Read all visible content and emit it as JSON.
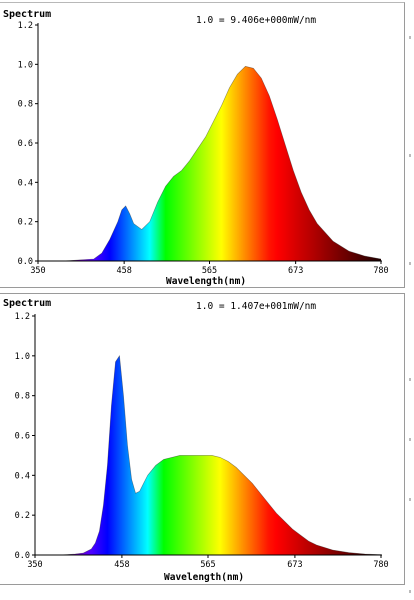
{
  "chart_data": [
    {
      "type": "area",
      "title": "Spectrum",
      "annotation": "1.0 = 9.406e+000mW/nm",
      "xlabel": "Wavelength(nm)",
      "ylabel": "",
      "xlim": [
        350,
        780
      ],
      "ylim": [
        0,
        1.2
      ],
      "x_ticks": [
        350,
        458,
        565,
        673,
        780
      ],
      "y_ticks": [
        0.0,
        0.2,
        0.4,
        0.6,
        0.8,
        1.0,
        1.2
      ],
      "x_tick_labels": [
        "350",
        "458",
        "565",
        "673",
        "780"
      ],
      "y_tick_labels": [
        "0.0",
        "0.2",
        "0.4",
        "0.6",
        "0.8",
        "1.0",
        "1.2"
      ],
      "fill": "wavelength-colored spectrum",
      "series": [
        {
          "x": [
            350,
            380,
            400,
            420,
            430,
            440,
            450,
            455,
            460,
            465,
            470,
            480,
            490,
            500,
            510,
            520,
            530,
            540,
            550,
            560,
            570,
            580,
            590,
            600,
            610,
            620,
            630,
            640,
            650,
            660,
            670,
            680,
            690,
            700,
            720,
            740,
            760,
            780
          ],
          "values": [
            0.0,
            0.0,
            0.005,
            0.01,
            0.04,
            0.11,
            0.2,
            0.26,
            0.28,
            0.24,
            0.19,
            0.16,
            0.2,
            0.3,
            0.38,
            0.43,
            0.46,
            0.51,
            0.57,
            0.63,
            0.71,
            0.79,
            0.88,
            0.95,
            0.99,
            0.98,
            0.93,
            0.84,
            0.72,
            0.59,
            0.46,
            0.35,
            0.26,
            0.19,
            0.1,
            0.05,
            0.025,
            0.01
          ]
        }
      ]
    },
    {
      "type": "area",
      "title": "Spectrum",
      "annotation": "1.0 = 1.407e+001mW/nm",
      "xlabel": "Wavelength(nm)",
      "ylabel": "",
      "xlim": [
        350,
        780
      ],
      "ylim": [
        0,
        1.2
      ],
      "x_ticks": [
        350,
        458,
        565,
        673,
        780
      ],
      "y_ticks": [
        0.0,
        0.2,
        0.4,
        0.6,
        0.8,
        1.0,
        1.2
      ],
      "x_tick_labels": [
        "350",
        "458",
        "565",
        "673",
        "780"
      ],
      "y_tick_labels": [
        "0.0",
        "0.2",
        "0.4",
        "0.6",
        "0.8",
        "1.0",
        "1.2"
      ],
      "fill": "wavelength-colored spectrum",
      "series": [
        {
          "x": [
            350,
            380,
            400,
            410,
            420,
            425,
            430,
            435,
            440,
            445,
            450,
            455,
            460,
            465,
            470,
            475,
            480,
            485,
            490,
            500,
            510,
            520,
            530,
            540,
            550,
            560,
            570,
            580,
            590,
            600,
            610,
            620,
            630,
            640,
            650,
            660,
            670,
            680,
            690,
            700,
            720,
            740,
            760,
            780
          ],
          "values": [
            0.0,
            0.0,
            0.005,
            0.01,
            0.03,
            0.06,
            0.12,
            0.25,
            0.45,
            0.75,
            0.97,
            1.0,
            0.8,
            0.55,
            0.38,
            0.31,
            0.32,
            0.36,
            0.4,
            0.45,
            0.48,
            0.49,
            0.5,
            0.5,
            0.5,
            0.5,
            0.5,
            0.49,
            0.47,
            0.44,
            0.4,
            0.36,
            0.31,
            0.26,
            0.21,
            0.17,
            0.13,
            0.1,
            0.07,
            0.05,
            0.025,
            0.012,
            0.005,
            0.002
          ]
        }
      ]
    }
  ]
}
